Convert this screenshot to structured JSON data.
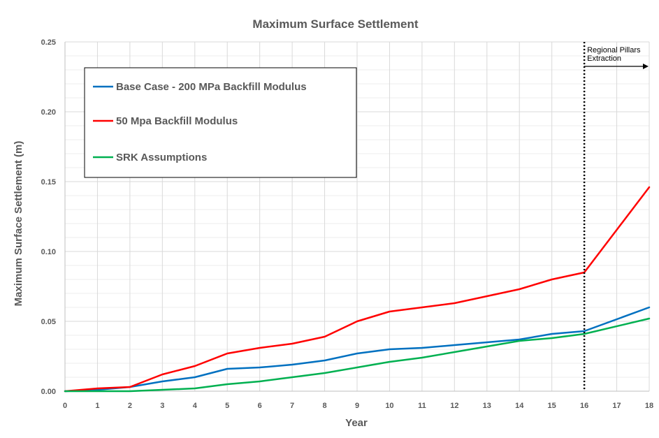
{
  "chart_data": {
    "type": "line",
    "title": "Maximum Surface Settlement",
    "xlabel": "Year",
    "ylabel": "Maximum Surface Settlement (m)",
    "xlim": [
      0,
      18
    ],
    "ylim": [
      0,
      0.25
    ],
    "x_ticks": [
      "0",
      "1",
      "2",
      "3",
      "4",
      "5",
      "6",
      "7",
      "8",
      "9",
      "10",
      "11",
      "12",
      "13",
      "14",
      "15",
      "16",
      "17",
      "18"
    ],
    "y_ticks": [
      "0.00",
      "0.05",
      "0.10",
      "0.15",
      "0.20",
      "0.25"
    ],
    "grid": true,
    "legend_position": "top-left",
    "series": [
      {
        "name": "Base Case - 200 MPa Backfill Modulus",
        "color": "#0070c0",
        "x": [
          0,
          1,
          2,
          3,
          4,
          5,
          6,
          7,
          8,
          9,
          10,
          11,
          12,
          13,
          14,
          15,
          16,
          18
        ],
        "values": [
          0.0,
          0.001,
          0.003,
          0.007,
          0.01,
          0.016,
          0.017,
          0.019,
          0.022,
          0.027,
          0.03,
          0.031,
          0.033,
          0.035,
          0.037,
          0.041,
          0.043,
          0.06
        ]
      },
      {
        "name": "50 Mpa Backfill Modulus",
        "color": "#ff0000",
        "x": [
          0,
          1,
          2,
          3,
          4,
          5,
          6,
          7,
          8,
          9,
          10,
          11,
          12,
          13,
          14,
          15,
          16,
          18
        ],
        "values": [
          0.0,
          0.002,
          0.003,
          0.012,
          0.018,
          0.027,
          0.031,
          0.034,
          0.039,
          0.05,
          0.057,
          0.06,
          0.063,
          0.068,
          0.073,
          0.08,
          0.085,
          0.146
        ]
      },
      {
        "name": "SRK Assumptions",
        "color": "#00b050",
        "x": [
          0,
          1,
          2,
          3,
          4,
          5,
          6,
          7,
          8,
          9,
          10,
          11,
          12,
          13,
          14,
          15,
          16,
          18
        ],
        "values": [
          0.0,
          0.0,
          0.0,
          0.001,
          0.002,
          0.005,
          0.007,
          0.01,
          0.013,
          0.017,
          0.021,
          0.024,
          0.028,
          0.032,
          0.036,
          0.038,
          0.041,
          0.052
        ]
      }
    ],
    "annotation": {
      "lines": [
        "Regional Pillars",
        "Extraction"
      ],
      "x": 16
    }
  }
}
